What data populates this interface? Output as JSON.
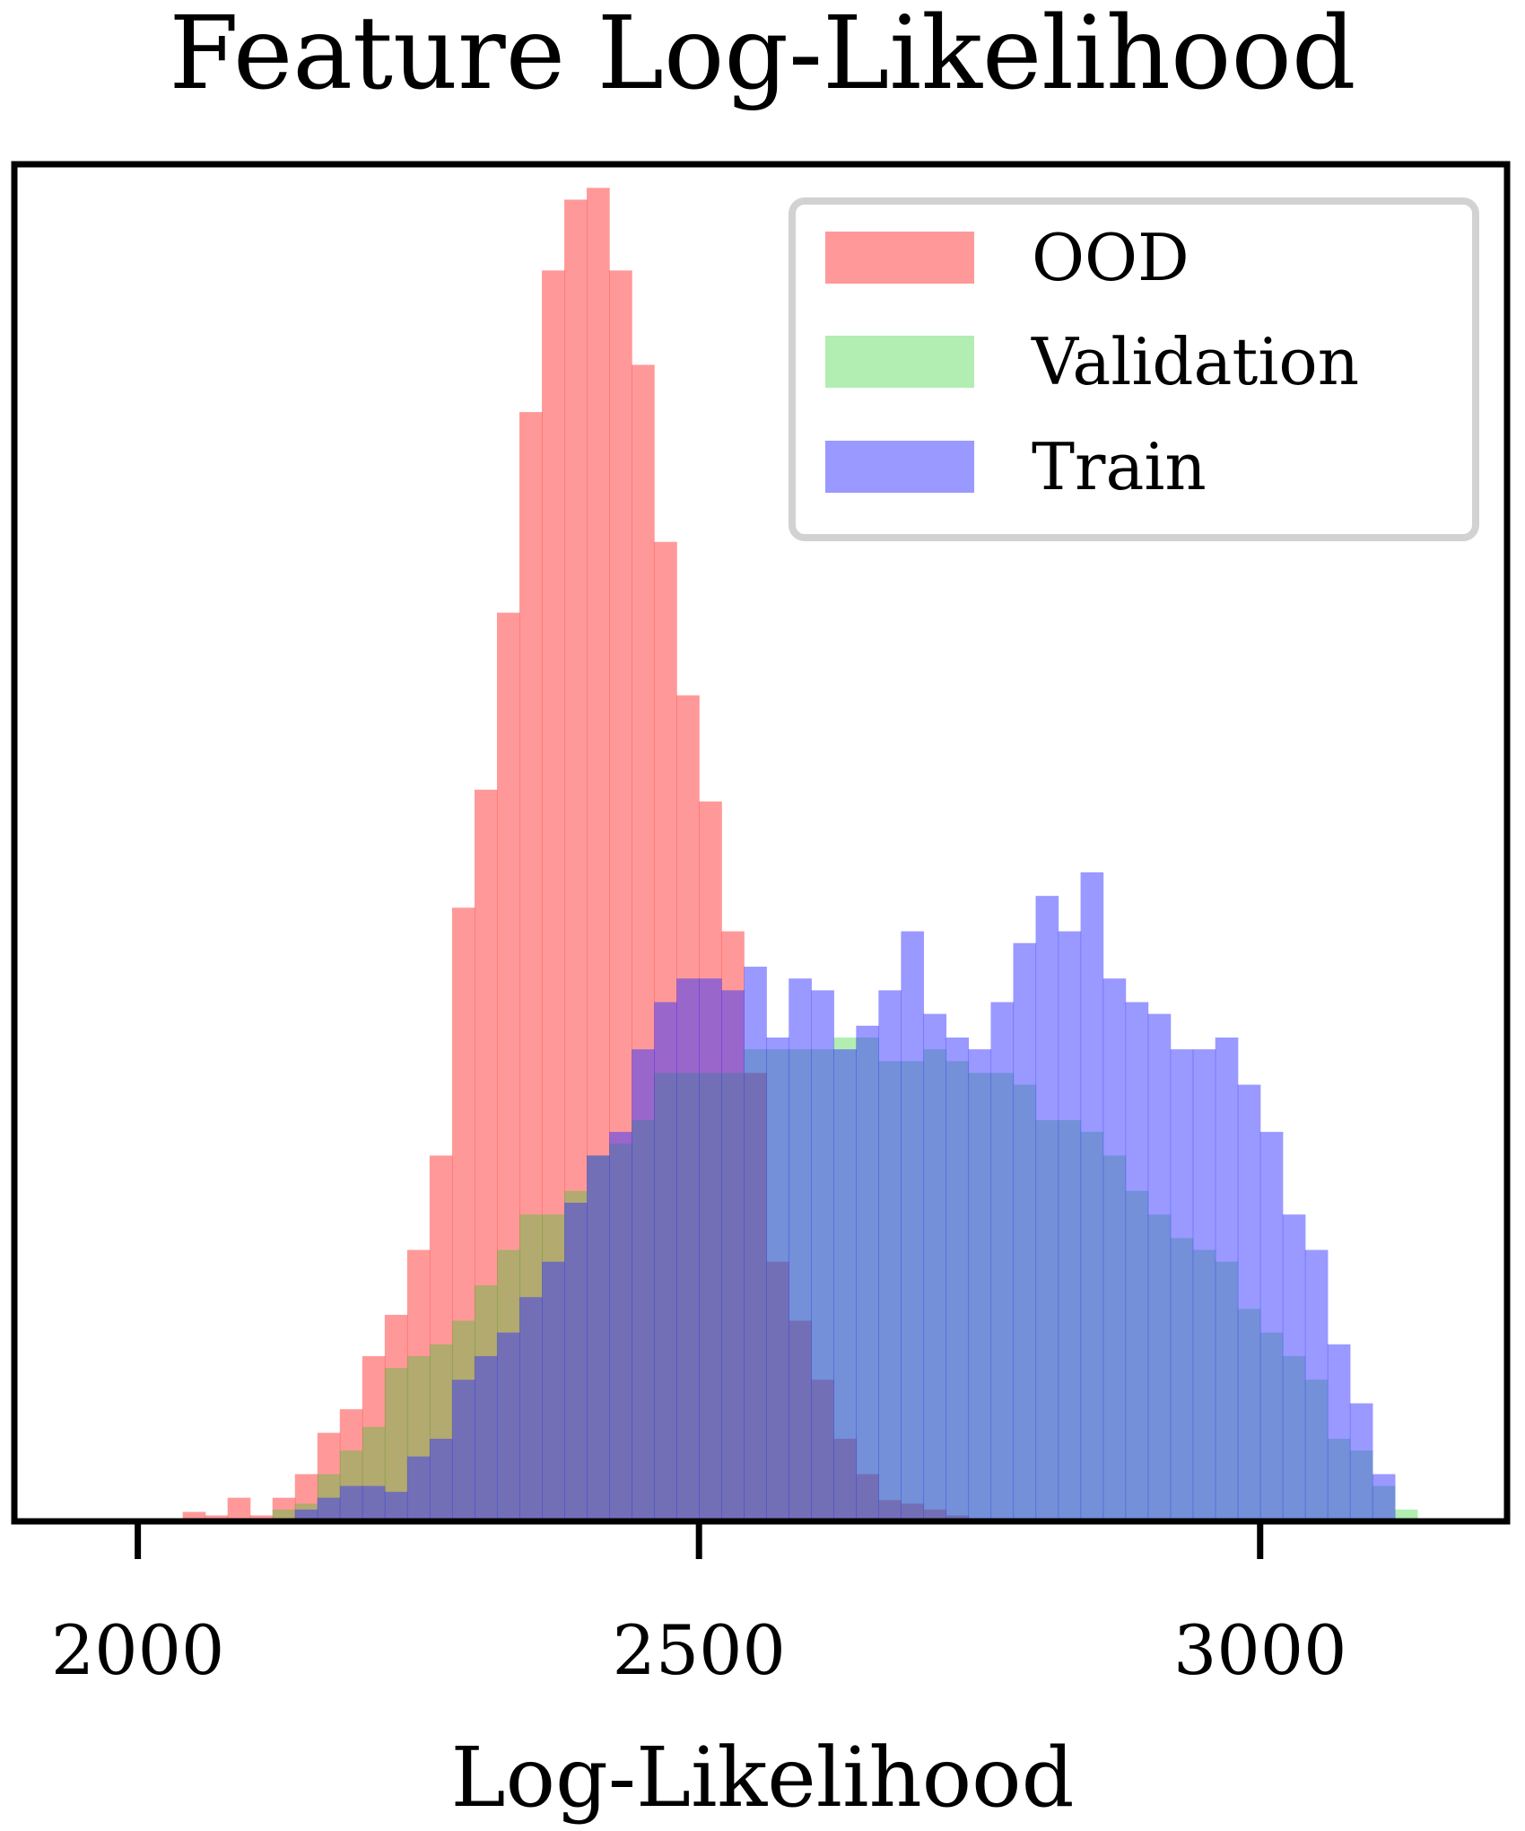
{
  "chart_data": {
    "type": "histogram",
    "title": "Feature Log-Likelihood",
    "xlabel": "Log-Likelihood",
    "ylabel": "",
    "xlim": [
      1890,
      3220
    ],
    "ylim": [
      0,
      115
    ],
    "xticks": [
      2000,
      2500,
      3000
    ],
    "y_tick_labels_shown": false,
    "grid": false,
    "legend": {
      "position": "top-right",
      "entries": [
        "OOD",
        "Validation",
        "Train"
      ]
    },
    "series": [
      {
        "name": "OOD",
        "color": "#ff3333",
        "opacity": 0.5,
        "bin_edges": [
          2040,
          2060,
          2080,
          2100,
          2120,
          2140,
          2160,
          2180,
          2200,
          2220,
          2240,
          2260,
          2280,
          2300,
          2320,
          2340,
          2360,
          2380,
          2400,
          2420,
          2440,
          2460,
          2480,
          2500,
          2520,
          2540,
          2560,
          2580,
          2600,
          2620,
          2640,
          2660,
          2680,
          2700,
          2720,
          2740
        ],
        "counts": [
          0.8,
          0.5,
          2,
          0.5,
          2,
          4,
          7.5,
          9.5,
          14,
          17.5,
          23,
          31,
          52,
          62,
          77,
          94,
          106,
          112,
          113,
          106,
          98,
          83,
          70,
          61,
          50,
          38,
          22,
          17,
          12,
          7,
          4,
          1.8,
          1.5,
          1,
          0.5
        ]
      },
      {
        "name": "Validation",
        "color": "#22cc22",
        "opacity": 0.35,
        "bin_edges": [
          2120,
          2140,
          2160,
          2180,
          2200,
          2220,
          2240,
          2260,
          2280,
          2300,
          2320,
          2340,
          2360,
          2380,
          2400,
          2420,
          2440,
          2460,
          2480,
          2500,
          2520,
          2540,
          2560,
          2580,
          2600,
          2620,
          2640,
          2660,
          2680,
          2700,
          2720,
          2740,
          2760,
          2780,
          2800,
          2820,
          2840,
          2860,
          2880,
          2900,
          2920,
          2940,
          2960,
          2980,
          3000,
          3020,
          3040,
          3060,
          3080,
          3100,
          3120,
          3140
        ],
        "counts": [
          1,
          1.5,
          4,
          6,
          8,
          13,
          14,
          15,
          17,
          20,
          23,
          26,
          26,
          28,
          31,
          32,
          34,
          38,
          38,
          38,
          38,
          40,
          40,
          40,
          40,
          41,
          41,
          39,
          39,
          40,
          39,
          38,
          38,
          37,
          34,
          34,
          33,
          31,
          28,
          26,
          24,
          23,
          22,
          18,
          16,
          14,
          12,
          7,
          6,
          3,
          1
        ]
      },
      {
        "name": "Train",
        "color": "#3333ff",
        "opacity": 0.5,
        "bin_edges": [
          2140,
          2160,
          2180,
          2200,
          2220,
          2240,
          2260,
          2280,
          2300,
          2320,
          2340,
          2360,
          2380,
          2400,
          2420,
          2440,
          2460,
          2480,
          2500,
          2520,
          2540,
          2560,
          2580,
          2600,
          2620,
          2640,
          2660,
          2680,
          2700,
          2720,
          2740,
          2760,
          2780,
          2800,
          2820,
          2840,
          2860,
          2880,
          2900,
          2920,
          2940,
          2960,
          2980,
          3000,
          3020,
          3040,
          3060,
          3080,
          3100,
          3120
        ],
        "counts": [
          1,
          2,
          3,
          3,
          2.5,
          5.5,
          7,
          12,
          14,
          16,
          19,
          22,
          27,
          31,
          33,
          40,
          44,
          46,
          46,
          45,
          47,
          41,
          46,
          45,
          40,
          42,
          45,
          50,
          43,
          41,
          40,
          44,
          49,
          53,
          50,
          55,
          46,
          44,
          43,
          40,
          40,
          41,
          37,
          33,
          26,
          23,
          15,
          10,
          4,
          2
        ]
      }
    ]
  }
}
